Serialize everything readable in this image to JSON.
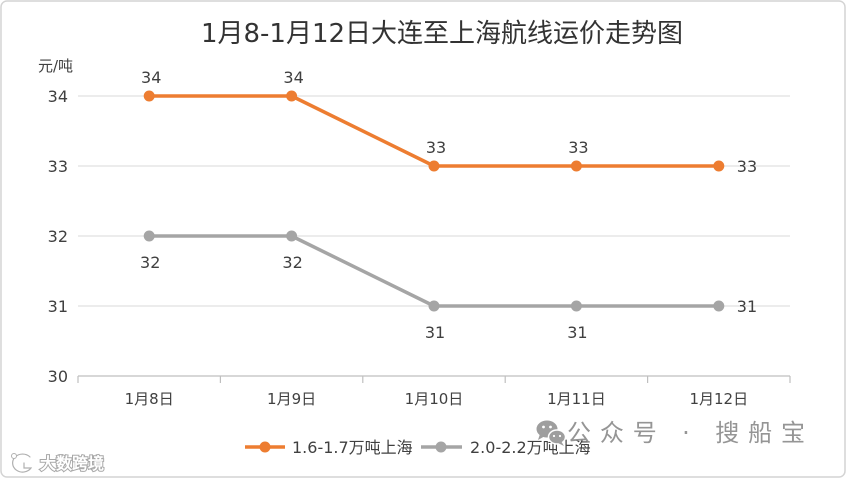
{
  "chart_data": {
    "type": "line",
    "title": "1月8-1月12日大连至上海航线运价走势图",
    "xlabel": "",
    "ylabel": "元/吨",
    "categories": [
      "1月8日",
      "1月9日",
      "1月10日",
      "1月11日",
      "1月12日"
    ],
    "ylim": [
      30,
      34
    ],
    "yticks": [
      30,
      31,
      32,
      33,
      34
    ],
    "grid": true,
    "legend": "bottom",
    "data_labels": true,
    "series": [
      {
        "name": "1.6-1.7万吨上海",
        "values": [
          34,
          34,
          33,
          33,
          33
        ],
        "color": "#ED7D31"
      },
      {
        "name": "2.0-2.2万吨上海",
        "values": [
          32,
          32,
          31,
          31,
          31
        ],
        "color": "#A5A5A5"
      }
    ]
  },
  "watermarks": {
    "wechat_icon": "wechat-icon",
    "wechat_text": "公众号 · 搜船宝",
    "brand_icon": "brand-logo-icon",
    "brand_text": "大数跨境"
  }
}
